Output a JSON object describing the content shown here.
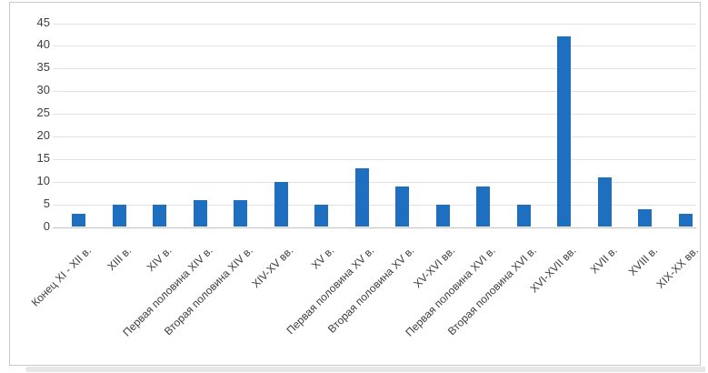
{
  "chart_data": {
    "type": "bar",
    "title": "",
    "xlabel": "",
    "ylabel": "",
    "categories": [
      "Конец XI - XII в.",
      "XIII в.",
      "XIV в.",
      "Первая половина XIV в.",
      "Вторая половина XIV в.",
      "XIV-XV вв.",
      "XV в.",
      "Первая половина XV в.",
      "Вторая половина XV в.",
      "XV-XVI вв.",
      "Первая половина XVI в.",
      "Вторая половина XVI в.",
      "XVI-XVII вв.",
      "XVII в.",
      "XVIII в.",
      "XIX-XX вв."
    ],
    "values": [
      3,
      5,
      5,
      6,
      6,
      10,
      5,
      13,
      9,
      5,
      9,
      5,
      42,
      11,
      4,
      3
    ],
    "ylim": [
      0,
      45
    ],
    "yticks": [
      0,
      5,
      10,
      15,
      20,
      25,
      30,
      35,
      40,
      45
    ],
    "grid": true,
    "legend": "none",
    "bar_color": "#1e6fbf",
    "grid_color": "#e2e2e2",
    "axis_color": "#c4c4c4",
    "text_color": "#3d3d3d",
    "frame_border_color": "#c9c9c9"
  }
}
